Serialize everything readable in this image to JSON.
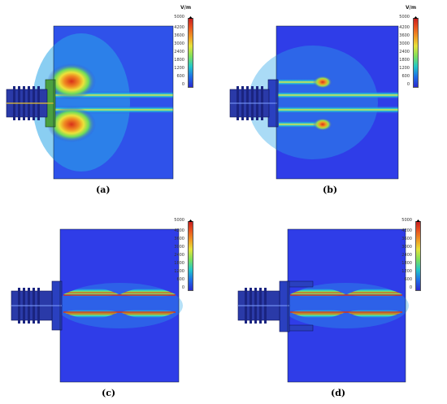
{
  "colorbar": {
    "unit": "V/m",
    "ticks": [
      "5000",
      "4200",
      "3600",
      "3000",
      "2400",
      "1800",
      "1200",
      "600",
      "0"
    ]
  },
  "panels": [
    {
      "id": "a",
      "caption": "(a)"
    },
    {
      "id": "b",
      "caption": "(b)"
    },
    {
      "id": "c",
      "caption": "(c)"
    },
    {
      "id": "d",
      "caption": "(d)"
    }
  ],
  "colors": {
    "field_blue": "#2f3de8",
    "field_cyan": "#22c8d8",
    "field_green": "#8ee04a",
    "field_yellow": "#ece23a",
    "field_red": "#d8301a"
  }
}
